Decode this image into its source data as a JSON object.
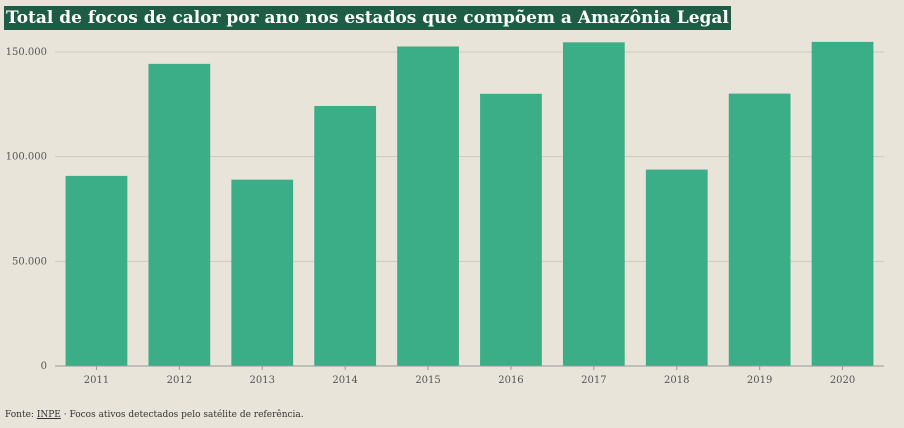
{
  "chart_data": {
    "type": "bar",
    "title": "Total de focos de calor por ano nos estados que compõem a Amazônia Legal",
    "xlabel": "",
    "ylabel": "",
    "categories": [
      "2011",
      "2012",
      "2013",
      "2014",
      "2015",
      "2016",
      "2017",
      "2018",
      "2019",
      "2020"
    ],
    "values": [
      90800,
      144300,
      89000,
      124200,
      152600,
      130000,
      154600,
      93800,
      130100,
      154800
    ],
    "ylim": [
      0,
      160000
    ],
    "yticks": [
      0,
      50000,
      100000,
      150000
    ],
    "ytick_labels": [
      "0",
      "50.000",
      "100.000",
      "150.000"
    ],
    "grid": true,
    "bar_color": "#3bae87"
  },
  "footer": {
    "prefix": "Fonte: ",
    "source_link": "INPE",
    "suffix": " · Focos ativos detectados pelo satélite de referência."
  }
}
